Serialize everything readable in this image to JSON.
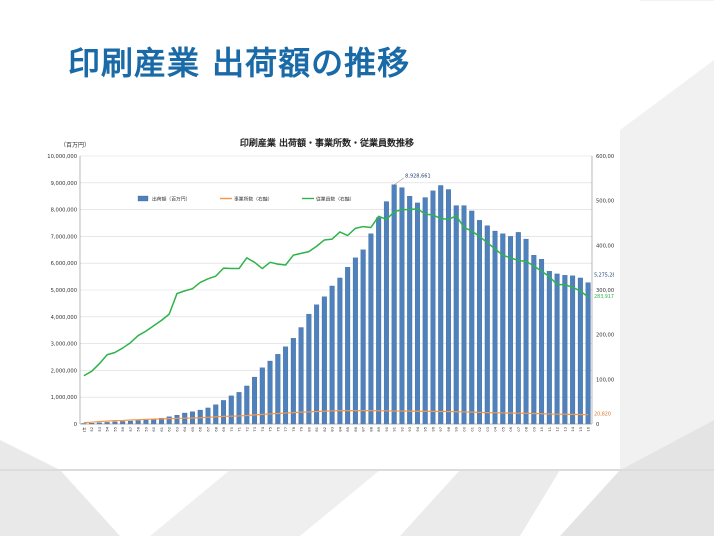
{
  "slide": {
    "title": "印刷産業 出荷額の推移",
    "title_color": "#1a6aa8"
  },
  "chart_data": {
    "type": "bar",
    "title": "印刷産業 出荷額・事業所数・従業員数推移",
    "ylabel_left": "（百万円）",
    "ylim_left": [
      0,
      10000000
    ],
    "ylim_right": [
      0,
      600000
    ],
    "yticks_left": [
      "0",
      "1,000,000",
      "2,000,000",
      "3,000,000",
      "4,000,000",
      "5,000,000",
      "6,000,000",
      "7,000,000",
      "8,000,000",
      "9,000,000",
      "10,000,000"
    ],
    "yticks_right": [
      "0",
      "100,000",
      "200,000",
      "300,000",
      "400,000",
      "500,000",
      "600,000"
    ],
    "legend_position": "top-left",
    "categories": [
      "1951",
      "1952",
      "1953",
      "1954",
      "1955",
      "1956",
      "1957",
      "1958",
      "1959",
      "1960",
      "1961",
      "1962",
      "1963",
      "1964",
      "1965",
      "1966",
      "1967",
      "1968",
      "1969",
      "1970",
      "1971",
      "1972",
      "1973",
      "1974",
      "1975",
      "1976",
      "1977",
      "1978",
      "1979",
      "1980",
      "1981",
      "1982",
      "1983",
      "1984",
      "1985",
      "1986",
      "1987",
      "1988",
      "1989",
      "1990",
      "1991",
      "1992",
      "1993",
      "1994",
      "1995",
      "1996",
      "1997",
      "1998",
      "1999",
      "2000",
      "2001",
      "2002",
      "2003",
      "2004",
      "2005",
      "2006",
      "2007",
      "2008",
      "2009",
      "2010",
      "2011",
      "2012",
      "2013",
      "2014",
      "2015",
      "2016"
    ],
    "category_label_first": "1951年",
    "series": [
      {
        "name": "出荷額（百万円）",
        "axis": "left",
        "type": "bar",
        "color": "#4f81bd",
        "values": [
          20000,
          30000,
          45000,
          60000,
          80000,
          95000,
          110000,
          130000,
          150000,
          180000,
          220000,
          270000,
          330000,
          410000,
          460000,
          520000,
          600000,
          720000,
          880000,
          1050000,
          1180000,
          1420000,
          1750000,
          2100000,
          2350000,
          2600000,
          2880000,
          3200000,
          3600000,
          4100000,
          4450000,
          4750000,
          5150000,
          5450000,
          5850000,
          6200000,
          6500000,
          7100000,
          7700000,
          8300000,
          8928661,
          8820000,
          8500000,
          8250000,
          8450000,
          8700000,
          8900000,
          8750000,
          8150000,
          8150000,
          7950000,
          7600000,
          7400000,
          7200000,
          7100000,
          7000000,
          7150000,
          6900000,
          6300000,
          6150000,
          5700000,
          5600000,
          5550000,
          5530000,
          5450000,
          5275282
        ]
      },
      {
        "name": "事業所数（右軸）",
        "axis": "right",
        "type": "line",
        "color": "#f79646",
        "values": [
          3000,
          4000,
          5500,
          6500,
          7500,
          8000,
          9000,
          9500,
          10500,
          11000,
          11500,
          12000,
          12500,
          13000,
          13500,
          14000,
          15000,
          16000,
          17000,
          17500,
          18000,
          19000,
          20500,
          21500,
          22500,
          23500,
          24500,
          25500,
          26500,
          27000,
          28000,
          28500,
          29500,
          30000,
          30000,
          30000,
          30000,
          30000,
          29500,
          29500,
          29000,
          29000,
          28800,
          28500,
          28500,
          28300,
          28000,
          28000,
          27500,
          27000,
          26500,
          26000,
          25500,
          25000,
          24800,
          24500,
          24200,
          24000,
          23500,
          23000,
          22500,
          22000,
          21800,
          21500,
          21200,
          20820
        ]
      },
      {
        "name": "従業員数（右軸）",
        "axis": "right",
        "type": "line",
        "color": "#2eb34a",
        "values": [
          108000,
          118000,
          135000,
          155000,
          160000,
          170000,
          182000,
          198000,
          208000,
          220000,
          232000,
          246000,
          292000,
          298000,
          303000,
          317000,
          325000,
          331000,
          349000,
          348000,
          348000,
          372000,
          362000,
          348000,
          362000,
          358000,
          356000,
          378000,
          382000,
          386000,
          398000,
          412000,
          414000,
          430000,
          422000,
          438000,
          442000,
          440000,
          465000,
          458000,
          475000,
          480000,
          480000,
          482000,
          470000,
          468000,
          460000,
          458000,
          466000,
          440000,
          432000,
          420000,
          406000,
          392000,
          378000,
          372000,
          366000,
          364000,
          354000,
          342000,
          330000,
          312000,
          312000,
          306000,
          298000,
          283917
        ]
      }
    ],
    "annotations": {
      "peak_value": "8,928,661",
      "last_shipments": "5,275,282",
      "last_employees": "283,917",
      "last_establishments": "20,820"
    }
  }
}
